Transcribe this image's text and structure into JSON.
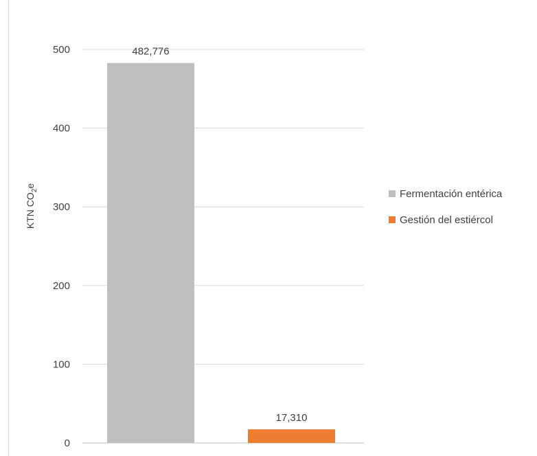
{
  "chart_data": {
    "type": "bar",
    "categories": [
      "Fermentación entérica",
      "Gestión del estiércol"
    ],
    "values": [
      482.776,
      17.31
    ],
    "value_labels": [
      "482,776",
      "17,310"
    ],
    "colors": [
      "#bfbfbf",
      "#ed7d31"
    ],
    "title": "",
    "xlabel": "",
    "ylabel": {
      "main": "KTN CO",
      "sub": "2",
      "tail": "e"
    },
    "ylim": [
      0,
      500
    ],
    "yticks": [
      0,
      100,
      200,
      300,
      400,
      500
    ],
    "grid": true,
    "legend_position": "right"
  },
  "legend": {
    "items": [
      {
        "label": "Fermentación entérica",
        "color": "#bfbfbf"
      },
      {
        "label": "Gestión del estiércol",
        "color": "#ed7d31"
      }
    ]
  }
}
